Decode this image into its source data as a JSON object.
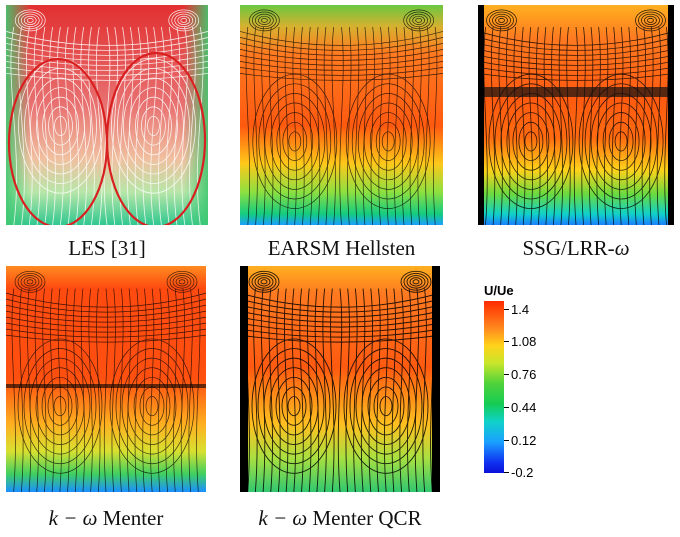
{
  "panels": [
    {
      "caption": "LES [31]"
    },
    {
      "caption": "EARSM Hellsten"
    },
    {
      "caption_prefix": "SSG/LRR-",
      "caption_symbol": "ω"
    },
    {
      "caption_symbol": "k − ω",
      "caption_suffix": " Menter"
    },
    {
      "caption_symbol": "k − ω",
      "caption_suffix": " Menter QCR"
    }
  ],
  "legend": {
    "title": "U/Ue",
    "ticks": [
      "1.4",
      "1.08",
      "0.76",
      "0.44",
      "0.12",
      "-0.2"
    ]
  },
  "colors": {
    "high": "#ff2a00",
    "mid_high": "#ffd21a",
    "mid": "#14cc55",
    "low": "#1aa0ff",
    "min": "#0a10d8",
    "streamline": "#000000",
    "les_streamline": "#ffffff",
    "les_ellipse": "#d92020"
  }
}
